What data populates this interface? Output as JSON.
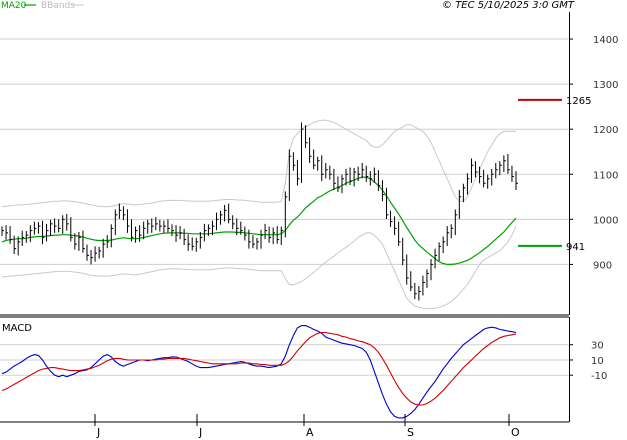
{
  "colors": {
    "price": "#000000",
    "ma20": "#00a000",
    "bbands": "#c8c8c8",
    "resistance": "#c00000",
    "support": "#00a000",
    "macd": "#0000d0",
    "signal": "#d00000",
    "grid": "#cfcfcf",
    "frame": "#000000"
  },
  "header": {
    "legend_ma20": "MA20",
    "legend_bbands": "BBands",
    "copyright": "© TEC 5/10/2025 3:0 GMT"
  },
  "macd_panel": {
    "label": "MACD"
  },
  "chart_data": [
    {
      "type": "ohlc",
      "overlays": [
        "MA20",
        "BBands"
      ],
      "y_ticks": [
        900,
        1000,
        1100,
        1200,
        1300,
        1400
      ],
      "y_tick_labels": [
        "900",
        "1000",
        "1100",
        "1200",
        "1300",
        "1400"
      ],
      "ylim": [
        790,
        1460
      ],
      "x_month_labels": [
        "J",
        "J",
        "A",
        "S",
        "O"
      ],
      "levels": [
        {
          "label": "1265",
          "value": 1265,
          "kind": "resistance"
        },
        {
          "label": "941",
          "value": 941,
          "kind": "support"
        }
      ],
      "close": [
        975,
        970,
        955,
        935,
        950,
        960,
        965,
        975,
        980,
        985,
        960,
        975,
        990,
        985,
        980,
        1000,
        990,
        960,
        945,
        960,
        935,
        920,
        915,
        925,
        930,
        945,
        950,
        980,
        1010,
        1020,
        1010,
        985,
        960,
        975,
        965,
        980,
        990,
        985,
        990,
        985,
        985,
        980,
        975,
        965,
        970,
        955,
        945,
        940,
        950,
        960,
        975,
        980,
        985,
        1000,
        1010,
        1020,
        1000,
        990,
        980,
        975,
        965,
        950,
        945,
        950,
        965,
        975,
        960,
        970,
        955,
        975,
        1050,
        1140,
        1120,
        1090,
        1200,
        1170,
        1140,
        1120,
        1130,
        1100,
        1110,
        1100,
        1080,
        1070,
        1090,
        1100,
        1085,
        1105,
        1100,
        1110,
        1095,
        1090,
        1100,
        1075,
        1055,
        1010,
        995,
        980,
        950,
        910,
        870,
        850,
        835,
        840,
        860,
        880,
        900,
        920,
        940,
        950,
        970,
        980,
        1010,
        1050,
        1070,
        1090,
        1120,
        1105,
        1095,
        1080,
        1090,
        1100,
        1110,
        1120,
        1130,
        1110,
        1095,
        1080
      ],
      "ma20": [
        950,
        953,
        955,
        956,
        957,
        957,
        958,
        960,
        961,
        962,
        962,
        963,
        964,
        965,
        965,
        966,
        966,
        965,
        964,
        963,
        961,
        958,
        956,
        954,
        953,
        953,
        953,
        954,
        956,
        958,
        959,
        958,
        957,
        957,
        958,
        960,
        962,
        964,
        966,
        968,
        969,
        970,
        970,
        970,
        970,
        969,
        969,
        968,
        968,
        968,
        968,
        968,
        969,
        970,
        971,
        972,
        972,
        972,
        971,
        971,
        970,
        969,
        968,
        967,
        966,
        966,
        966,
        966,
        966,
        968,
        975,
        988,
        998,
        1005,
        1015,
        1025,
        1033,
        1040,
        1048,
        1052,
        1058,
        1063,
        1067,
        1071,
        1075,
        1080,
        1084,
        1087,
        1091,
        1094,
        1093,
        1090,
        1083,
        1075,
        1065,
        1052,
        1038,
        1025,
        1012,
        997,
        982,
        968,
        954,
        943,
        935,
        927,
        920,
        913,
        906,
        902,
        900,
        900,
        901,
        903,
        906,
        909,
        914,
        920,
        926,
        933,
        940,
        948,
        956,
        964,
        972,
        983,
        993,
        1003
      ],
      "bb_upper": [
        1028,
        1029,
        1030,
        1031,
        1032,
        1032,
        1033,
        1034,
        1035,
        1036,
        1037,
        1038,
        1039,
        1040,
        1040,
        1041,
        1041,
        1040,
        1039,
        1038,
        1036,
        1034,
        1032,
        1030,
        1029,
        1028,
        1028,
        1029,
        1031,
        1033,
        1035,
        1034,
        1033,
        1032,
        1033,
        1034,
        1035,
        1036,
        1038,
        1040,
        1041,
        1042,
        1042,
        1042,
        1042,
        1041,
        1041,
        1040,
        1040,
        1040,
        1040,
        1040,
        1041,
        1042,
        1043,
        1044,
        1044,
        1044,
        1043,
        1043,
        1042,
        1041,
        1040,
        1039,
        1038,
        1038,
        1038,
        1038,
        1038,
        1040,
        1080,
        1150,
        1180,
        1190,
        1200,
        1205,
        1210,
        1215,
        1218,
        1220,
        1220,
        1218,
        1215,
        1210,
        1205,
        1200,
        1195,
        1190,
        1185,
        1180,
        1175,
        1165,
        1160,
        1160,
        1165,
        1175,
        1185,
        1195,
        1200,
        1205,
        1210,
        1210,
        1205,
        1200,
        1195,
        1185,
        1170,
        1150,
        1130,
        1110,
        1090,
        1070,
        1050,
        1040,
        1040,
        1050,
        1070,
        1090,
        1110,
        1130,
        1150,
        1165,
        1180,
        1190,
        1195,
        1195,
        1195,
        1195
      ],
      "bb_lower": [
        872,
        873,
        874,
        875,
        876,
        876,
        877,
        878,
        879,
        880,
        881,
        882,
        883,
        884,
        884,
        885,
        885,
        884,
        883,
        882,
        880,
        878,
        876,
        875,
        874,
        874,
        874,
        875,
        876,
        878,
        879,
        878,
        877,
        877,
        878,
        880,
        882,
        884,
        886,
        888,
        889,
        890,
        890,
        890,
        890,
        889,
        889,
        888,
        888,
        888,
        888,
        888,
        889,
        890,
        891,
        892,
        892,
        892,
        891,
        891,
        890,
        889,
        888,
        887,
        886,
        886,
        886,
        886,
        886,
        886,
        868,
        855,
        855,
        858,
        862,
        868,
        875,
        882,
        890,
        898,
        905,
        912,
        918,
        925,
        932,
        938,
        945,
        952,
        960,
        965,
        970,
        970,
        965,
        955,
        945,
        925,
        905,
        885,
        865,
        845,
        825,
        815,
        808,
        805,
        803,
        802,
        802,
        803,
        805,
        808,
        812,
        818,
        825,
        835,
        845,
        855,
        870,
        885,
        900,
        910,
        915,
        920,
        925,
        930,
        940,
        950,
        965,
        985
      ]
    },
    {
      "type": "line",
      "label": "MACD",
      "y_ticks": [
        30,
        10,
        -10
      ],
      "y_tick_labels": [
        "30",
        "10",
        "-10"
      ],
      "ylim": [
        -70,
        65
      ],
      "series": [
        {
          "name": "MACD",
          "values": [
            -8,
            -6,
            -2,
            2,
            5,
            8,
            12,
            15,
            17,
            16,
            10,
            2,
            -5,
            -10,
            -12,
            -10,
            -12,
            -10,
            -8,
            -5,
            -4,
            -3,
            0,
            5,
            10,
            15,
            17,
            14,
            8,
            4,
            2,
            4,
            6,
            8,
            10,
            10,
            9,
            10,
            11,
            12,
            13,
            13,
            14,
            14,
            12,
            10,
            8,
            5,
            2,
            0,
            0,
            0,
            1,
            2,
            3,
            4,
            5,
            6,
            7,
            8,
            7,
            5,
            3,
            2,
            2,
            1,
            0,
            1,
            2,
            5,
            15,
            30,
            42,
            52,
            55,
            55,
            53,
            50,
            48,
            45,
            40,
            38,
            36,
            34,
            32,
            31,
            30,
            29,
            27,
            25,
            20,
            10,
            -5,
            -20,
            -35,
            -48,
            -58,
            -64,
            -66,
            -66,
            -64,
            -60,
            -55,
            -48,
            -40,
            -32,
            -25,
            -18,
            -10,
            -2,
            5,
            12,
            18,
            24,
            30,
            34,
            38,
            42,
            46,
            50,
            52,
            53,
            52,
            50,
            49,
            48,
            47,
            46
          ]
        },
        {
          "name": "Signal",
          "values": [
            -30,
            -28,
            -25,
            -22,
            -19,
            -16,
            -13,
            -10,
            -7,
            -4,
            -2,
            -1,
            0,
            0,
            -1,
            -2,
            -3,
            -4,
            -4,
            -4,
            -3,
            -2,
            -1,
            1,
            3,
            6,
            9,
            11,
            12,
            12,
            11,
            10,
            10,
            10,
            10,
            10,
            10,
            10,
            10,
            11,
            11,
            12,
            12,
            12,
            12,
            12,
            11,
            10,
            9,
            8,
            7,
            6,
            5,
            5,
            5,
            5,
            5,
            5,
            5,
            6,
            6,
            6,
            5,
            5,
            4,
            4,
            3,
            3,
            3,
            3,
            5,
            9,
            15,
            22,
            28,
            34,
            39,
            42,
            45,
            46,
            46,
            45,
            44,
            43,
            41,
            40,
            38,
            37,
            35,
            34,
            32,
            30,
            26,
            20,
            12,
            3,
            -7,
            -17,
            -26,
            -34,
            -40,
            -45,
            -48,
            -49,
            -49,
            -47,
            -44,
            -40,
            -35,
            -30,
            -24,
            -18,
            -12,
            -6,
            0,
            5,
            10,
            15,
            20,
            25,
            29,
            33,
            36,
            39,
            41,
            42,
            43,
            44
          ]
        }
      ]
    }
  ]
}
